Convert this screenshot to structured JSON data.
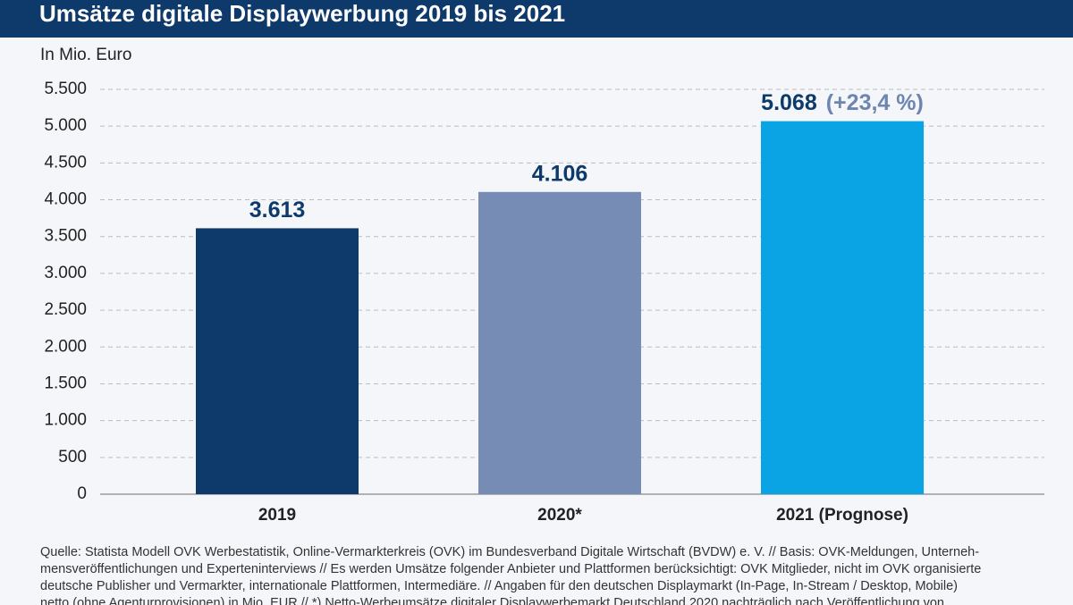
{
  "chart_data": {
    "type": "bar",
    "title": "Umsätze digitale Displaywerbung 2019 bis 2021",
    "y_label": "In Mio. Euro",
    "categories": [
      "2019",
      "2020*",
      "2021 (Prognose)"
    ],
    "values": [
      3613,
      4106,
      5068
    ],
    "value_labels": [
      "3.613",
      "4.106",
      "5.068"
    ],
    "annotations": [
      null,
      null,
      "(+23,4 %)"
    ],
    "colors": [
      "#0d3a6b",
      "#768cb4",
      "#0aa3e3"
    ],
    "ylim": [
      0,
      5500
    ],
    "yticks": [
      0,
      500,
      {
        "value": 1000,
        "label": "1.000"
      },
      {
        "value": 1500,
        "label": "1.500"
      },
      {
        "value": 2000,
        "label": "2.000"
      },
      {
        "value": 2500,
        "label": "2.500"
      },
      {
        "value": 3000,
        "label": "3.000"
      },
      {
        "value": 3500,
        "label": "3.500"
      },
      {
        "value": 4000,
        "label": "4.000"
      },
      {
        "value": 4500,
        "label": "4.500"
      },
      {
        "value": 5000,
        "label": "5.000"
      },
      {
        "value": 5500,
        "label": "5.500"
      }
    ],
    "grid": true,
    "source_lines": [
      "Quelle: Statista Modell OVK Werbestatistik, Online-Vermarkterkreis (OVK) im Bundesverband Digitale Wirtschaft (BVDW) e. V. // Basis: OVK-Meldungen, Unterneh-",
      "mensveröffentlichungen und Experteninterviews // Es werden Umsätze folgender Anbieter und Plattformen berücksichtigt: OVK Mitglieder, nicht im OVK organisierte",
      "deutsche Publisher und Vermarkter, internationale Plattformen, Intermediäre. // Angaben für den deutschen Displaymarkt (In-Page, In-Stream / Desktop, Mobile)",
      "netto (ohne Agenturprovisionen) in Mio. EUR // *) Netto-Werbeumsätze digitaler Displaywerbemarkt Deutschland 2020 nachträglich nach Veröffentlichung von"
    ]
  }
}
